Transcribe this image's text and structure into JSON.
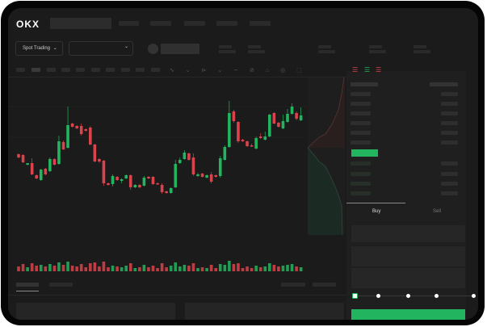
{
  "header": {
    "logo": "OKX",
    "market_selector": "Spot Trading",
    "market_chevron": "chevron-down-icon",
    "pair_chevron": "chevron-down-icon"
  },
  "order_form": {
    "tabs": [
      "Buy",
      "Sell"
    ],
    "active_tab": "Buy",
    "slider_level_percent": 0
  },
  "colors": {
    "up": "#22b45e",
    "down": "#d9434b",
    "background": "#1b1b1b"
  },
  "chart_data": {
    "type": "candlestick",
    "candles": [
      [
        69,
        70,
        64,
        65
      ],
      [
        68,
        69,
        58,
        59
      ],
      [
        56,
        58,
        55,
        58
      ],
      [
        58,
        64,
        43,
        44
      ],
      [
        43,
        44,
        38,
        39
      ],
      [
        37,
        51,
        36,
        50
      ],
      [
        51,
        52,
        43,
        44
      ],
      [
        48,
        65,
        47,
        63
      ],
      [
        63,
        64,
        55,
        56
      ],
      [
        57,
        92,
        56,
        85
      ],
      [
        84,
        86,
        74,
        75
      ],
      [
        77,
        128,
        76,
        105
      ],
      [
        107,
        108,
        102,
        103
      ],
      [
        104,
        105,
        100,
        101
      ],
      [
        104,
        107,
        92,
        94
      ],
      [
        100,
        101,
        97,
        98
      ],
      [
        102,
        104,
        80,
        81
      ],
      [
        81,
        82,
        59,
        60
      ],
      [
        63,
        64,
        58,
        60
      ],
      [
        61,
        62,
        30,
        33
      ],
      [
        33,
        34,
        30,
        31
      ],
      [
        32,
        44,
        29,
        42
      ],
      [
        41,
        42,
        36,
        37
      ],
      [
        36,
        39,
        33,
        38
      ],
      [
        39,
        44,
        38,
        43
      ],
      [
        43,
        44,
        25,
        28
      ],
      [
        28,
        32,
        27,
        31
      ],
      [
        31,
        32,
        27,
        28
      ],
      [
        30,
        42,
        29,
        40
      ],
      [
        41,
        42,
        38,
        39
      ],
      [
        41,
        42,
        31,
        32
      ],
      [
        33,
        34,
        31,
        32
      ],
      [
        31,
        33,
        20,
        22
      ],
      [
        23,
        24,
        20,
        21
      ],
      [
        21,
        28,
        20,
        27
      ],
      [
        28,
        62,
        27,
        57
      ],
      [
        58,
        65,
        57,
        62
      ],
      [
        63,
        74,
        62,
        71
      ],
      [
        70,
        71,
        61,
        62
      ],
      [
        65,
        70,
        42,
        44
      ],
      [
        42,
        46,
        41,
        44
      ],
      [
        45,
        46,
        40,
        41
      ],
      [
        40,
        44,
        39,
        43
      ],
      [
        44,
        47,
        33,
        35
      ],
      [
        43,
        44,
        40,
        41
      ],
      [
        42,
        67,
        40,
        64
      ],
      [
        62,
        80,
        61,
        78
      ],
      [
        78,
        135,
        77,
        120
      ],
      [
        122,
        124,
        108,
        110
      ],
      [
        109,
        110,
        83,
        85
      ],
      [
        87,
        88,
        84,
        85
      ],
      [
        85,
        86,
        78,
        79
      ],
      [
        80,
        82,
        78,
        79
      ],
      [
        76,
        91,
        75,
        89
      ],
      [
        91,
        95,
        88,
        89
      ],
      [
        87,
        97,
        86,
        91
      ],
      [
        91,
        119,
        90,
        118
      ],
      [
        120,
        121,
        106,
        107
      ],
      [
        108,
        109,
        102,
        103
      ],
      [
        101,
        118,
        100,
        110
      ],
      [
        109,
        125,
        108,
        119
      ],
      [
        119,
        132,
        118,
        128
      ],
      [
        120,
        122,
        111,
        113
      ],
      [
        111,
        127,
        110,
        117
      ]
    ],
    "volumes": [
      6,
      9,
      5,
      10,
      7,
      8,
      6,
      9,
      7,
      11,
      8,
      12,
      7,
      6,
      9,
      5,
      10,
      11,
      6,
      12,
      5,
      7,
      6,
      5,
      7,
      10,
      4,
      5,
      8,
      5,
      7,
      4,
      10,
      5,
      7,
      11,
      6,
      8,
      7,
      10,
      4,
      5,
      4,
      8,
      4,
      9,
      8,
      13,
      9,
      10,
      4,
      6,
      4,
      7,
      5,
      6,
      10,
      8,
      6,
      7,
      8,
      9,
      6,
      5
    ]
  }
}
